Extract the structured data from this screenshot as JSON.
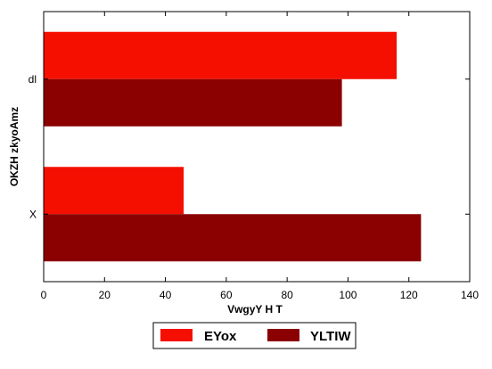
{
  "chart_data": {
    "type": "bar",
    "orientation": "horizontal",
    "title": "",
    "xlabel": "VwgyY H  T",
    "ylabel": "OKZH zkyoAmz",
    "categories": [
      "dl",
      "X"
    ],
    "series": [
      {
        "name": "EYox",
        "values": [
          116,
          46
        ],
        "color": "#f50f00"
      },
      {
        "name": "YLTIW",
        "values": [
          98,
          124
        ],
        "color": "#8b0000"
      }
    ],
    "xlim": [
      0,
      140
    ],
    "xticks": [
      0,
      20,
      40,
      60,
      80,
      100,
      120,
      140
    ],
    "grid": false,
    "legend_position": "bottom"
  }
}
